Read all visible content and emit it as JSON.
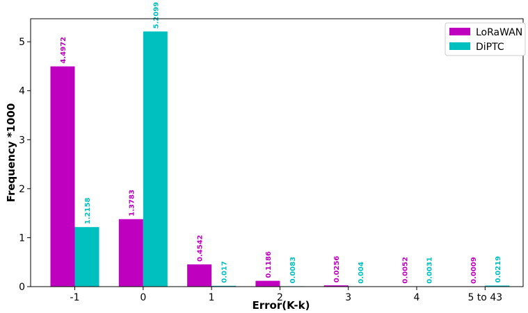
{
  "chart_data": {
    "type": "bar",
    "categories": [
      "-1",
      "0",
      "1",
      "2",
      "3",
      "4",
      "5 to 43"
    ],
    "series": [
      {
        "name": "LoRaWAN",
        "color": "#bf00bf",
        "values": [
          4.4972,
          1.3783,
          0.4542,
          0.1186,
          0.0256,
          0.0052,
          0.0009
        ],
        "labels": [
          "4.4972",
          "1.3783",
          "0.4542",
          "0.1186",
          "0.0256",
          "0.0052",
          "0.0009"
        ]
      },
      {
        "name": "DiPTC",
        "color": "#00bfbf",
        "values": [
          1.2158,
          5.2099,
          0.017,
          0.0083,
          0.004,
          0.0031,
          0.0219
        ],
        "labels": [
          "1.2158",
          "5.2099",
          "0.017",
          "0.0083",
          "0.004",
          "0.0031",
          "0.0219"
        ]
      }
    ],
    "xlabel": "Error(K-k)",
    "ylabel": "Frequency *1000",
    "ylim": [
      0,
      5.47
    ],
    "yticks": [
      "0",
      "1",
      "2",
      "3",
      "4",
      "5"
    ],
    "grid": false,
    "legend_position": "top-right"
  }
}
